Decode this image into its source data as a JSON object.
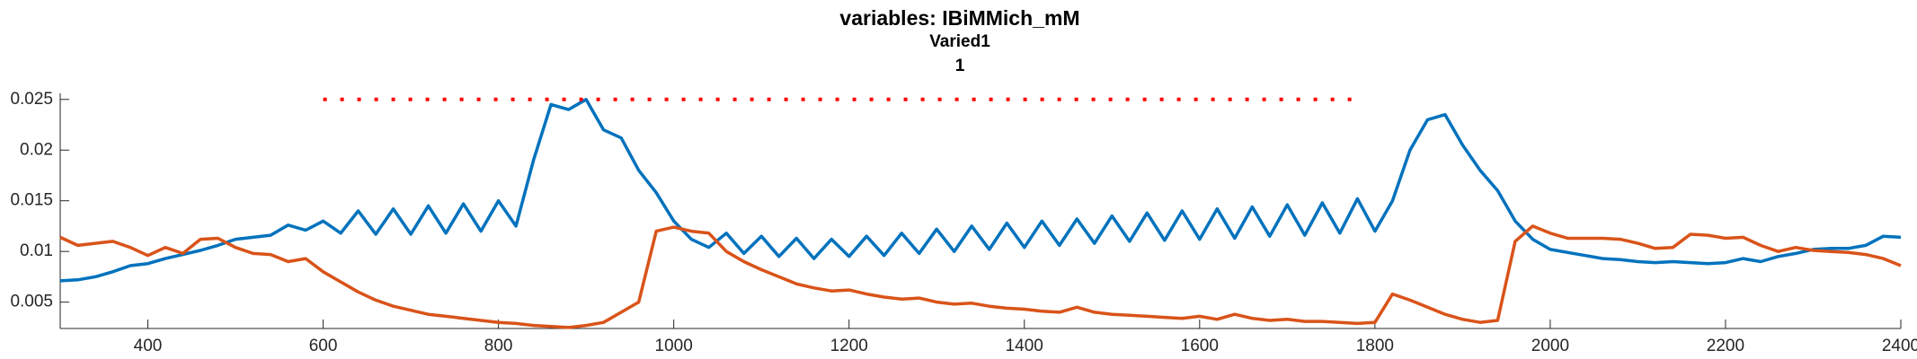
{
  "chart_data": {
    "type": "line",
    "title": "variables: IBiMMich_mM",
    "subtitle": [
      "Varied1",
      "1"
    ],
    "xlim": [
      300,
      2400
    ],
    "xticks": [
      400,
      600,
      800,
      1000,
      1200,
      1400,
      1600,
      1800,
      2000,
      2200,
      2400
    ],
    "ylim": [
      0.0024,
      0.0256
    ],
    "yticks": [
      0.005,
      0.01,
      0.015,
      0.02,
      0.025
    ],
    "series": [
      {
        "color": "#0072bd",
        "x": [
          300,
          320,
          340,
          360,
          380,
          400,
          420,
          440,
          460,
          480,
          500,
          520,
          540,
          560,
          580,
          600,
          620,
          640,
          660,
          680,
          700,
          720,
          740,
          760,
          780,
          800,
          820,
          840,
          860,
          880,
          900,
          920,
          940,
          960,
          980,
          1000,
          1020,
          1040,
          1060,
          1080,
          1100,
          1120,
          1140,
          1160,
          1180,
          1200,
          1220,
          1240,
          1260,
          1280,
          1300,
          1320,
          1340,
          1360,
          1380,
          1400,
          1420,
          1440,
          1460,
          1480,
          1500,
          1520,
          1540,
          1560,
          1580,
          1600,
          1620,
          1640,
          1660,
          1680,
          1700,
          1720,
          1740,
          1760,
          1780,
          1800,
          1820,
          1840,
          1860,
          1880,
          1900,
          1920,
          1940,
          1960,
          1980,
          2000,
          2020,
          2040,
          2060,
          2080,
          2100,
          2120,
          2140,
          2160,
          2180,
          2200,
          2220,
          2240,
          2260,
          2280,
          2300,
          2320,
          2340,
          2360,
          2380,
          2400
        ],
        "values": [
          0.0071,
          0.0072,
          0.0075,
          0.008,
          0.0086,
          0.0088,
          0.0093,
          0.0097,
          0.0101,
          0.0106,
          0.0112,
          0.0114,
          0.0116,
          0.0126,
          0.0121,
          0.013,
          0.0118,
          0.014,
          0.0117,
          0.0142,
          0.0117,
          0.0145,
          0.0118,
          0.0147,
          0.012,
          0.015,
          0.0125,
          0.019,
          0.0245,
          0.024,
          0.025,
          0.022,
          0.0212,
          0.018,
          0.0158,
          0.013,
          0.0112,
          0.0104,
          0.0118,
          0.0098,
          0.0115,
          0.0095,
          0.0113,
          0.0093,
          0.0112,
          0.0095,
          0.0115,
          0.0096,
          0.0118,
          0.0098,
          0.0122,
          0.01,
          0.0125,
          0.0102,
          0.0128,
          0.0104,
          0.013,
          0.0106,
          0.0132,
          0.0108,
          0.0135,
          0.011,
          0.0138,
          0.0111,
          0.014,
          0.0112,
          0.0142,
          0.0113,
          0.0144,
          0.0115,
          0.0146,
          0.0116,
          0.0148,
          0.0118,
          0.0152,
          0.012,
          0.015,
          0.02,
          0.023,
          0.0235,
          0.0205,
          0.018,
          0.016,
          0.013,
          0.0112,
          0.0102,
          0.0099,
          0.0096,
          0.0093,
          0.0092,
          0.009,
          0.0089,
          0.009,
          0.0089,
          0.0088,
          0.0089,
          0.0093,
          0.009,
          0.0095,
          0.0098,
          0.0102,
          0.0103,
          0.0103,
          0.0106,
          0.0115,
          0.0114
        ]
      },
      {
        "color": "#d95319",
        "x": [
          300,
          320,
          340,
          360,
          380,
          400,
          420,
          440,
          460,
          480,
          500,
          520,
          540,
          560,
          580,
          600,
          620,
          640,
          660,
          680,
          700,
          720,
          740,
          760,
          780,
          800,
          820,
          840,
          860,
          880,
          900,
          920,
          940,
          960,
          980,
          1000,
          1020,
          1040,
          1060,
          1080,
          1100,
          1120,
          1140,
          1160,
          1180,
          1200,
          1220,
          1240,
          1260,
          1280,
          1300,
          1320,
          1340,
          1360,
          1380,
          1400,
          1420,
          1440,
          1460,
          1480,
          1500,
          1520,
          1540,
          1560,
          1580,
          1600,
          1620,
          1640,
          1660,
          1680,
          1700,
          1720,
          1740,
          1760,
          1780,
          1800,
          1820,
          1840,
          1860,
          1880,
          1900,
          1920,
          1940,
          1960,
          1980,
          2000,
          2020,
          2040,
          2060,
          2080,
          2100,
          2120,
          2140,
          2160,
          2180,
          2200,
          2220,
          2240,
          2260,
          2280,
          2300,
          2320,
          2340,
          2360,
          2380,
          2400
        ],
        "values": [
          0.0114,
          0.0106,
          0.0108,
          0.011,
          0.0104,
          0.0096,
          0.0104,
          0.0098,
          0.0112,
          0.0113,
          0.0104,
          0.0098,
          0.0097,
          0.009,
          0.0093,
          0.008,
          0.007,
          0.006,
          0.0052,
          0.0046,
          0.0042,
          0.0038,
          0.0036,
          0.0034,
          0.0032,
          0.003,
          0.0029,
          0.0027,
          0.0026,
          0.0025,
          0.0027,
          0.003,
          0.004,
          0.005,
          0.012,
          0.0124,
          0.012,
          0.0118,
          0.01,
          0.009,
          0.0082,
          0.0075,
          0.0068,
          0.0064,
          0.0061,
          0.0062,
          0.0058,
          0.0055,
          0.0053,
          0.0054,
          0.005,
          0.0048,
          0.0049,
          0.0046,
          0.0044,
          0.0043,
          0.0041,
          0.004,
          0.0045,
          0.004,
          0.0038,
          0.0037,
          0.0036,
          0.0035,
          0.0034,
          0.0036,
          0.0033,
          0.0038,
          0.0034,
          0.0032,
          0.0033,
          0.0031,
          0.0031,
          0.003,
          0.0029,
          0.003,
          0.0058,
          0.0052,
          0.0045,
          0.0038,
          0.0033,
          0.003,
          0.0032,
          0.011,
          0.0125,
          0.0118,
          0.0113,
          0.0113,
          0.0113,
          0.0112,
          0.0108,
          0.0103,
          0.0104,
          0.0117,
          0.0116,
          0.0113,
          0.0114,
          0.0106,
          0.01,
          0.0104,
          0.0101,
          0.01,
          0.0099,
          0.0097,
          0.0093,
          0.0086
        ]
      },
      {
        "color": "#ff0000",
        "line_style": "dotted",
        "x": [
          600,
          1780
        ],
        "values": [
          0.025,
          0.025
        ]
      }
    ]
  }
}
